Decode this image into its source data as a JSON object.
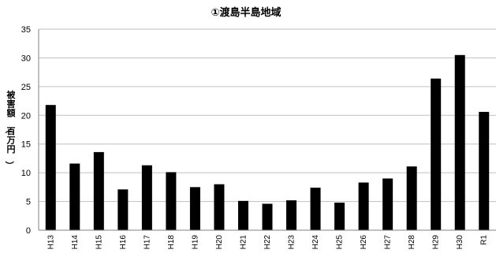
{
  "chart_data": {
    "type": "bar",
    "title": "①渡島半島地域",
    "ylabel": "被害額（百万円）",
    "categories": [
      "H13",
      "H14",
      "H15",
      "H16",
      "H17",
      "H18",
      "H19",
      "H20",
      "H21",
      "H22",
      "H23",
      "H24",
      "H25",
      "H26",
      "H27",
      "H28",
      "H29",
      "H30",
      "R1"
    ],
    "values": [
      21.8,
      11.6,
      13.6,
      7.1,
      11.3,
      10.1,
      7.5,
      8.0,
      5.1,
      4.6,
      5.2,
      7.4,
      4.8,
      8.3,
      9.0,
      11.1,
      26.4,
      30.5,
      20.6
    ],
    "ylim": [
      0,
      35
    ],
    "yticks": [
      0,
      5,
      10,
      15,
      20,
      25,
      30,
      35
    ],
    "grid": true,
    "bar_color": "#000000"
  }
}
